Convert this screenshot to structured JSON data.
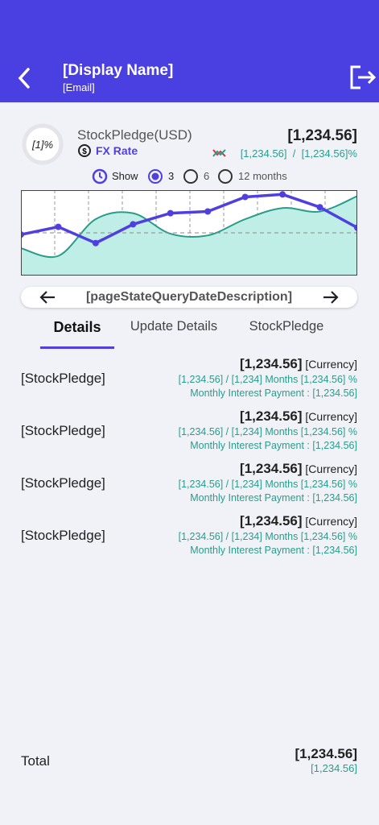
{
  "header": {
    "display_name": "[Display Name]",
    "email": "[Email]"
  },
  "summary": {
    "percent": "[1]%",
    "title": "StockPledge(USD)",
    "fx_rate": "FX Rate",
    "amount": "[1,234.56]",
    "sub_amount": "[1,234.56]",
    "separator": "/",
    "sub_percent": "[1,234.56]%"
  },
  "range": {
    "show": "Show",
    "options": [
      "3",
      "6",
      "12 months"
    ],
    "selected": 0
  },
  "chart_data": {
    "type": "line",
    "categories": [
      null,
      null,
      null,
      null,
      null,
      null,
      null,
      null,
      null,
      null
    ],
    "series": [
      {
        "color": "#4f3fe0",
        "values": [
          48,
          57,
          38,
          60,
          73,
          75,
          92,
          95,
          80,
          56
        ]
      },
      {
        "color": "#2a9d8a",
        "values": [
          32,
          23,
          66,
          73,
          49,
          47,
          66,
          79,
          75,
          93
        ]
      }
    ],
    "ylim": [
      0,
      100
    ],
    "yticks": [
      50
    ],
    "grid": true
  },
  "date_nav": {
    "label": "[pageStateQueryDateDescription]"
  },
  "tabs": {
    "items": [
      "Details",
      "Update Details",
      "StockPledge"
    ],
    "active": 0
  },
  "items": [
    {
      "name": "[StockPledge]",
      "amount": "[1,234.56]",
      "currency": "[Currency]",
      "detail": "[1,234.56] / [1,234] Months [1,234.56] %",
      "interest": "Monthly Interest Payment : [1,234.56]"
    },
    {
      "name": "[StockPledge]",
      "amount": "[1,234.56]",
      "currency": "[Currency]",
      "detail": "[1,234.56] / [1,234] Months [1,234.56] %",
      "interest": "Monthly Interest Payment : [1,234.56]"
    },
    {
      "name": "[StockPledge]",
      "amount": "[1,234.56]",
      "currency": "[Currency]",
      "detail": "[1,234.56] / [1,234] Months [1,234.56] %",
      "interest": "Monthly Interest Payment : [1,234.56]"
    },
    {
      "name": "[StockPledge]",
      "amount": "[1,234.56]",
      "currency": "[Currency]",
      "detail": "[1,234.56] / [1,234] Months [1,234.56] %",
      "interest": "Monthly Interest Payment : [1,234.56]"
    }
  ],
  "total": {
    "label": "Total",
    "amount": "[1,234.56]",
    "sub_amount": "[1,234.56]"
  }
}
